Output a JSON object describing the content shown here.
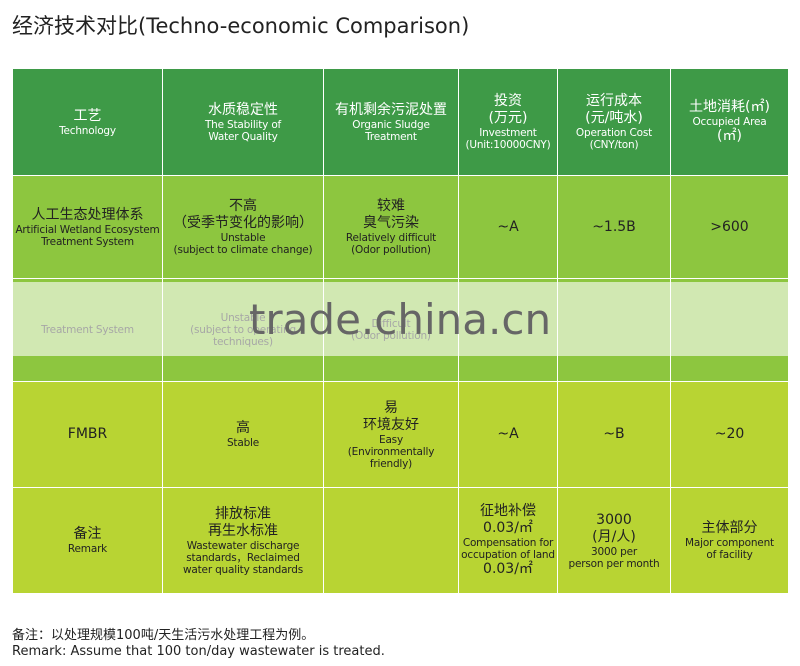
{
  "header": {
    "title": "经济技术对比(Techno-economic Comparison)"
  },
  "table": {
    "header": [
      [
        "工艺",
        "Technology"
      ],
      [
        "水质稳定性",
        "The Stability of",
        "Water Quality"
      ],
      [
        "有机剩余污泥处置",
        "Organic Sludge",
        "Treatment"
      ],
      [
        "投资",
        "(万元)",
        "Investment",
        "(Unit:10000CNY)"
      ],
      [
        "运行成本",
        "(元/吨水)",
        "Operation Cost",
        "(CNY/ton)"
      ],
      [
        "土地消耗(㎡)",
        "Occupied Area",
        "(㎡)"
      ]
    ],
    "rows": [
      [
        [
          "人工生态处理体系",
          "Artificial Wetland Ecosystem",
          "Treatment System"
        ],
        [
          "不高",
          "（受季节变化的影响）",
          "Unstable",
          "(subject to climate change)"
        ],
        [
          "较难",
          "臭气污染",
          "Relatively difficult",
          "(Odor pollution)"
        ],
        [
          "~A"
        ],
        [
          "~1.5B"
        ],
        [
          ">600"
        ]
      ],
      [
        [
          "Treatment System"
        ],
        [
          "Unstable",
          "(subject to operating techniques)"
        ],
        [
          "Difficult",
          "(Odor pollution)"
        ],
        [],
        [],
        []
      ],
      [
        [
          "FMBR"
        ],
        [
          "高",
          "Stable"
        ],
        [
          "易",
          "环境友好",
          "Easy",
          "(Environmentally friendly)"
        ],
        [
          "~A"
        ],
        [
          "~B"
        ],
        [
          "~20"
        ]
      ],
      [
        [
          "备注",
          "Remark"
        ],
        [
          "排放标准",
          "再生水标准",
          "Wastewater discharge",
          "standards，Reclaimed",
          "water quality standards"
        ],
        [],
        [
          "征地补偿",
          "0.03/㎡",
          "Compensation for",
          "occupation of land",
          "0.03/㎡"
        ],
        [
          "3000",
          "(月/人)",
          "3000 per",
          "person per month"
        ],
        [
          "主体部分",
          "Major component",
          "of facility"
        ]
      ]
    ]
  },
  "watermark": "trade.china.cn",
  "notes": [
    "备注：以处理规模100吨/天生活污水处理工程为例。",
    "Remark: Assume that 100 ton/day wastewater is treated."
  ]
}
